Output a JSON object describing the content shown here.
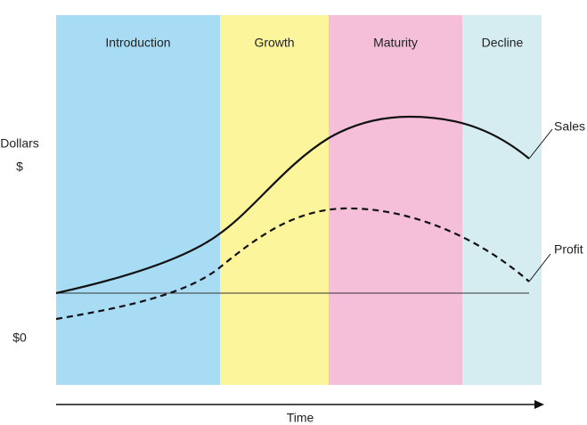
{
  "stages": [
    "Introduction",
    "Growth",
    "Maturity",
    "Decline"
  ],
  "y_axis": {
    "label": "Dollars",
    "unit": "$",
    "zero": "$0"
  },
  "curves": {
    "sales": "Sales",
    "profit": "Profit"
  },
  "x_axis": {
    "label": "Time"
  }
}
